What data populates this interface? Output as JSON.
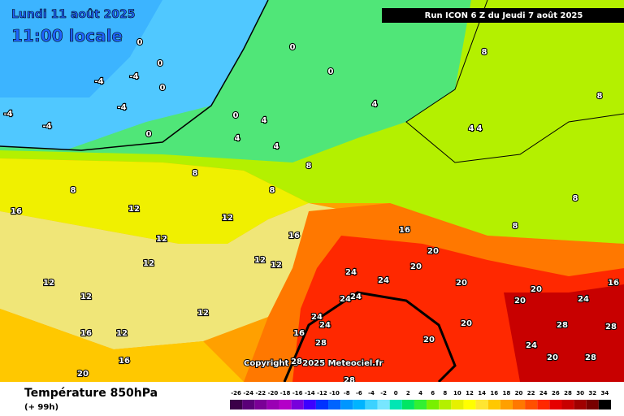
{
  "header": {
    "date": "Lundi 11 août 2025",
    "time": "11:00 locale",
    "run": "Run ICON 6 Z du Jeudi 7 août 2025",
    "copyright": "Copyright © 2025 Meteociel.fr"
  },
  "footer": {
    "title": "Température 850hPa",
    "lead": "(+ 99h)"
  },
  "scale": {
    "values": [
      -26,
      -24,
      -22,
      -20,
      -18,
      -16,
      -14,
      -12,
      -10,
      -8,
      -6,
      -4,
      -2,
      0,
      2,
      4,
      6,
      8,
      10,
      12,
      14,
      16,
      18,
      20,
      22,
      24,
      26,
      28,
      30,
      32,
      34
    ],
    "colors": [
      "#3b0048",
      "#5a0078",
      "#7a0096",
      "#9a00b4",
      "#b400c8",
      "#7800dc",
      "#3c00ff",
      "#0032ff",
      "#0064ff",
      "#0096ff",
      "#00b4ff",
      "#3cd2ff",
      "#78e6ff",
      "#00e6b4",
      "#00e664",
      "#32f032",
      "#78f000",
      "#b4f000",
      "#e6f000",
      "#ffff00",
      "#ffe632",
      "#ffc800",
      "#ffa000",
      "#ff7800",
      "#ff5000",
      "#ff2800",
      "#e60000",
      "#c80000",
      "#a00000",
      "#780000",
      "#000000"
    ]
  },
  "map_labels": [
    0,
    0,
    0,
    0,
    0,
    0,
    0,
    -4,
    -4,
    -4,
    -4,
    -4,
    4,
    4,
    4,
    4,
    4,
    4,
    8,
    8,
    8,
    8,
    8,
    8,
    8,
    8,
    12,
    12,
    12,
    12,
    12,
    12,
    12,
    12,
    12,
    12,
    16,
    16,
    16,
    16,
    16,
    16,
    16,
    20,
    20,
    20,
    20,
    20,
    20,
    20,
    20,
    20,
    24,
    24,
    24,
    24,
    24,
    24,
    24,
    24,
    28,
    28,
    28,
    28,
    28,
    28
  ]
}
